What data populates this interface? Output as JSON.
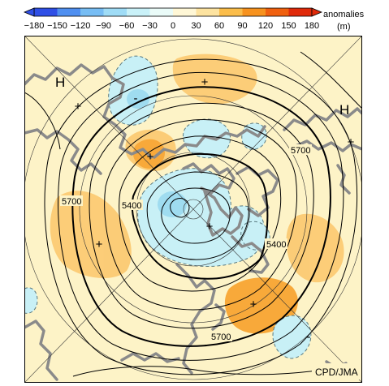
{
  "legend": {
    "title": "anomalies",
    "unit": "(m)",
    "tick_labels": [
      "-180",
      "-150",
      "-120",
      "-90",
      "-60",
      "-30",
      "0",
      "30",
      "60",
      "90",
      "120",
      "150",
      "180"
    ],
    "colors": [
      "#2f4fe6",
      "#4f8ff0",
      "#77bdf4",
      "#9fdcf6",
      "#c9f1f8",
      "#eafbf8",
      "#fff7d6",
      "#fde3a0",
      "#fbbd4a",
      "#f7921e",
      "#f0600f",
      "#e02a0a"
    ]
  },
  "map": {
    "background_color": "#fdf3c7",
    "land_color": "#8a8a8a",
    "credit": "CPD/JMA",
    "high_label_left": "H",
    "high_label_right": "H",
    "contour_labels": [
      "5700",
      "5700",
      "5700",
      "5400",
      "5400"
    ],
    "plus_marker": "+",
    "minus_marker": "-"
  }
}
